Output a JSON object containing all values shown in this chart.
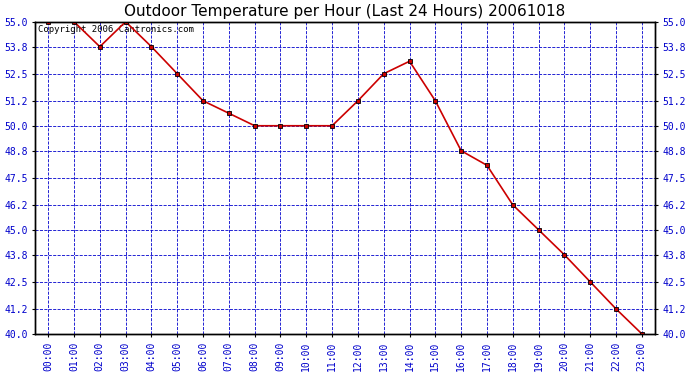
{
  "title": "Outdoor Temperature per Hour (Last 24 Hours) 20061018",
  "copyright_text": "Copyright 2006 Cantronics.com",
  "hours": [
    "00:00",
    "01:00",
    "02:00",
    "03:00",
    "04:00",
    "05:00",
    "06:00",
    "07:00",
    "08:00",
    "09:00",
    "10:00",
    "11:00",
    "12:00",
    "13:00",
    "14:00",
    "15:00",
    "16:00",
    "17:00",
    "18:00",
    "19:00",
    "20:00",
    "21:00",
    "22:00",
    "23:00"
  ],
  "temps": [
    55.0,
    55.0,
    53.8,
    55.0,
    53.8,
    52.5,
    51.2,
    50.6,
    50.0,
    50.0,
    50.0,
    50.0,
    51.2,
    52.5,
    53.1,
    51.2,
    48.8,
    48.1,
    46.2,
    45.0,
    43.8,
    42.5,
    41.2,
    40.0
  ],
  "ylim_min": 40.0,
  "ylim_max": 55.0,
  "yticks": [
    40.0,
    41.2,
    42.5,
    43.8,
    45.0,
    46.2,
    47.5,
    48.8,
    50.0,
    51.2,
    52.5,
    53.8,
    55.0
  ],
  "line_color": "#cc0000",
  "marker_color": "#cc0000",
  "marker_edge_color": "#000000",
  "bg_color": "#ffffff",
  "plot_area_color": "#ffffff",
  "grid_color": "#0000cc",
  "title_color": "#000000",
  "title_fontsize": 11,
  "axis_label_color": "#0000cc",
  "axis_label_fontsize": 7,
  "copyright_fontsize": 6.5,
  "copyright_color": "#000000"
}
